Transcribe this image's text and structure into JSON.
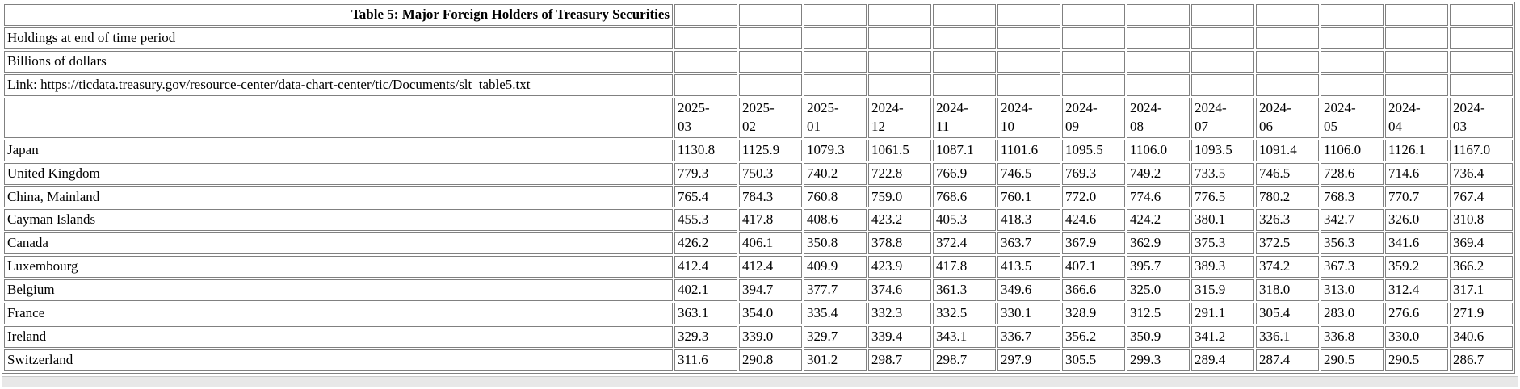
{
  "colors": {
    "border": "#808080",
    "background": "#ffffff",
    "text": "#000000",
    "bottom_strip": "#e8e8e8"
  },
  "chart_data": {
    "type": "table",
    "title": "Table 5: Major Foreign Holders of Treasury Securities",
    "notes": [
      "Holdings at end of time period",
      "Billions of dollars",
      "Link: https://ticdata.treasury.gov/resource-center/data-chart-center/tic/Documents/slt_table5.txt"
    ],
    "columns": [
      "2025-03",
      "2025-02",
      "2025-01",
      "2024-12",
      "2024-11",
      "2024-10",
      "2024-09",
      "2024-08",
      "2024-07",
      "2024-06",
      "2024-05",
      "2024-04",
      "2024-03"
    ],
    "rows": [
      {
        "label": "Japan",
        "values": [
          "1130.8",
          "1125.9",
          "1079.3",
          "1061.5",
          "1087.1",
          "1101.6",
          "1095.5",
          "1106.0",
          "1093.5",
          "1091.4",
          "1106.0",
          "1126.1",
          "1167.0"
        ]
      },
      {
        "label": "United Kingdom",
        "values": [
          "779.3",
          "750.3",
          "740.2",
          "722.8",
          "766.9",
          "746.5",
          "769.3",
          "749.2",
          "733.5",
          "746.5",
          "728.6",
          "714.6",
          "736.4"
        ]
      },
      {
        "label": "China, Mainland",
        "values": [
          "765.4",
          "784.3",
          "760.8",
          "759.0",
          "768.6",
          "760.1",
          "772.0",
          "774.6",
          "776.5",
          "780.2",
          "768.3",
          "770.7",
          "767.4"
        ]
      },
      {
        "label": "Cayman Islands",
        "values": [
          "455.3",
          "417.8",
          "408.6",
          "423.2",
          "405.3",
          "418.3",
          "424.6",
          "424.2",
          "380.1",
          "326.3",
          "342.7",
          "326.0",
          "310.8"
        ]
      },
      {
        "label": "Canada",
        "values": [
          "426.2",
          "406.1",
          "350.8",
          "378.8",
          "372.4",
          "363.7",
          "367.9",
          "362.9",
          "375.3",
          "372.5",
          "356.3",
          "341.6",
          "369.4"
        ]
      },
      {
        "label": "Luxembourg",
        "values": [
          "412.4",
          "412.4",
          "409.9",
          "423.9",
          "417.8",
          "413.5",
          "407.1",
          "395.7",
          "389.3",
          "374.2",
          "367.3",
          "359.2",
          "366.2"
        ]
      },
      {
        "label": "Belgium",
        "values": [
          "402.1",
          "394.7",
          "377.7",
          "374.6",
          "361.3",
          "349.6",
          "366.6",
          "325.0",
          "315.9",
          "318.0",
          "313.0",
          "312.4",
          "317.1"
        ]
      },
      {
        "label": "France",
        "values": [
          "363.1",
          "354.0",
          "335.4",
          "332.3",
          "332.5",
          "330.1",
          "328.9",
          "312.5",
          "291.1",
          "305.4",
          "283.0",
          "276.6",
          "271.9"
        ]
      },
      {
        "label": "Ireland",
        "values": [
          "329.3",
          "339.0",
          "329.7",
          "339.4",
          "343.1",
          "336.7",
          "356.2",
          "350.9",
          "341.2",
          "336.1",
          "336.8",
          "330.0",
          "340.6"
        ]
      },
      {
        "label": "Switzerland",
        "values": [
          "311.6",
          "290.8",
          "301.2",
          "298.7",
          "298.7",
          "297.9",
          "305.5",
          "299.3",
          "289.4",
          "287.4",
          "290.5",
          "290.5",
          "286.7"
        ]
      }
    ]
  }
}
